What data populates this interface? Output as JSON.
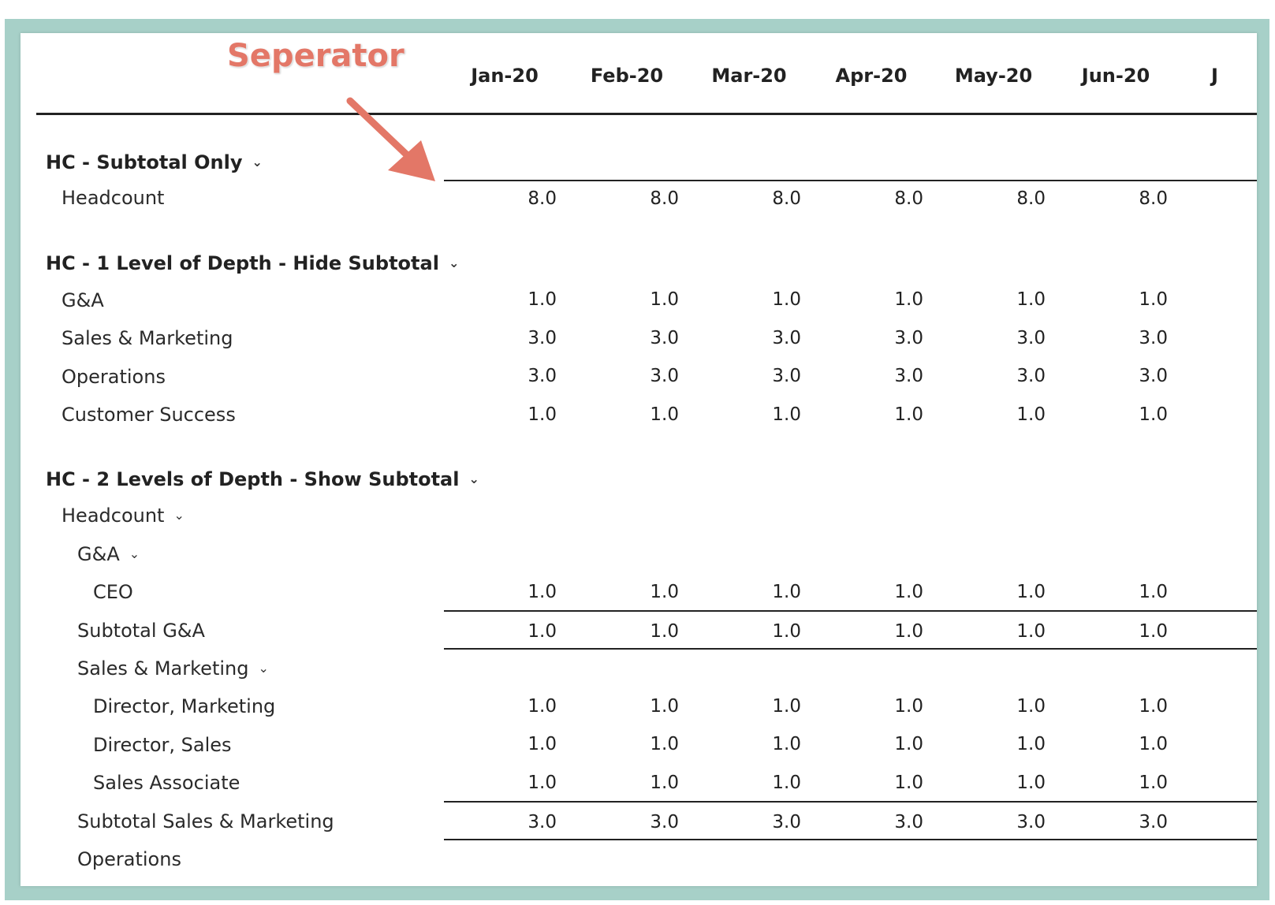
{
  "annotation": {
    "label": "Seperator",
    "color": "#e37767"
  },
  "columns": [
    "Jan-20",
    "Feb-20",
    "Mar-20",
    "Apr-20",
    "May-20",
    "Jun-20"
  ],
  "partial_column": "J",
  "colors": {
    "frame": "#a7d0c8",
    "text": "#1f1f1f",
    "rule": "#222222"
  },
  "sections": {
    "s1": {
      "title": "HC - Subtotal Only",
      "rows": {
        "headcount": {
          "label": "Headcount",
          "values": [
            "8.0",
            "8.0",
            "8.0",
            "8.0",
            "8.0",
            "8.0"
          ]
        }
      }
    },
    "s2": {
      "title": "HC - 1 Level of Depth - Hide Subtotal",
      "rows": {
        "ga": {
          "label": "G&A",
          "values": [
            "1.0",
            "1.0",
            "1.0",
            "1.0",
            "1.0",
            "1.0"
          ]
        },
        "sm": {
          "label": "Sales & Marketing",
          "values": [
            "3.0",
            "3.0",
            "3.0",
            "3.0",
            "3.0",
            "3.0"
          ]
        },
        "ops": {
          "label": "Operations",
          "values": [
            "3.0",
            "3.0",
            "3.0",
            "3.0",
            "3.0",
            "3.0"
          ]
        },
        "cs": {
          "label": "Customer Success",
          "values": [
            "1.0",
            "1.0",
            "1.0",
            "1.0",
            "1.0",
            "1.0"
          ]
        }
      }
    },
    "s3": {
      "title": "HC - 2 Levels of Depth - Show Subtotal",
      "headcount_label": "Headcount",
      "ga_label": "G&A",
      "rows": {
        "ceo": {
          "label": "CEO",
          "values": [
            "1.0",
            "1.0",
            "1.0",
            "1.0",
            "1.0",
            "1.0"
          ]
        },
        "subtotal_ga": {
          "label": "Subtotal G&A",
          "values": [
            "1.0",
            "1.0",
            "1.0",
            "1.0",
            "1.0",
            "1.0"
          ]
        },
        "dir_mkt": {
          "label": "Director, Marketing",
          "values": [
            "1.0",
            "1.0",
            "1.0",
            "1.0",
            "1.0",
            "1.0"
          ]
        },
        "dir_sales": {
          "label": "Director, Sales",
          "values": [
            "1.0",
            "1.0",
            "1.0",
            "1.0",
            "1.0",
            "1.0"
          ]
        },
        "sales_assoc": {
          "label": "Sales Associate",
          "values": [
            "1.0",
            "1.0",
            "1.0",
            "1.0",
            "1.0",
            "1.0"
          ]
        },
        "subtotal_sm": {
          "label": "Subtotal Sales & Marketing",
          "values": [
            "3.0",
            "3.0",
            "3.0",
            "3.0",
            "3.0",
            "3.0"
          ]
        }
      },
      "sm_label": "Sales & Marketing",
      "ops_partial_label": "Operations"
    }
  }
}
